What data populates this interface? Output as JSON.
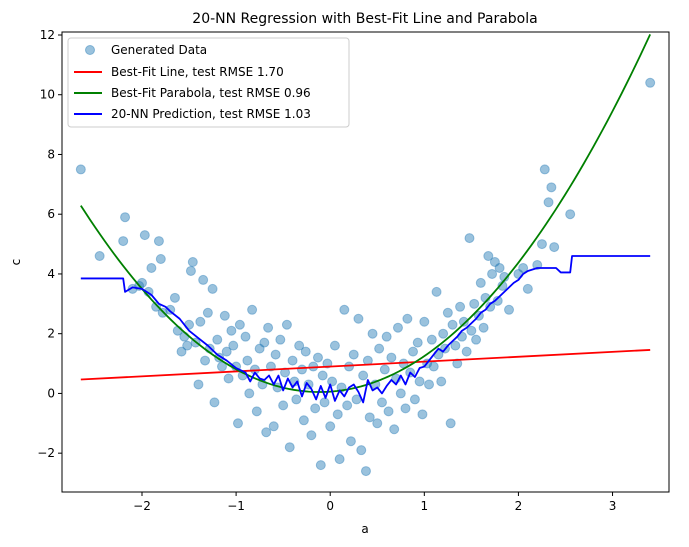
{
  "chart_data": {
    "type": "scatter",
    "title": "20-NN Regression with Best-Fit Line and Parabola",
    "xlabel": "a",
    "ylabel": "c",
    "xlim": [
      -2.85,
      3.6
    ],
    "ylim": [
      -3.3,
      12.1
    ],
    "x_ticks": [
      -2,
      -1,
      0,
      1,
      2,
      3
    ],
    "y_ticks": [
      -2,
      0,
      2,
      4,
      6,
      8,
      10,
      12
    ],
    "grid": false,
    "legend_position": "top-left",
    "series": [
      {
        "name": "Generated Data",
        "kind": "scatter",
        "color": "#1f77b4",
        "alpha": 0.45,
        "points": [
          [
            -2.65,
            7.5
          ],
          [
            -2.45,
            4.6
          ],
          [
            -2.2,
            5.1
          ],
          [
            -2.18,
            5.9
          ],
          [
            -2.1,
            3.5
          ],
          [
            -2.03,
            3.6
          ],
          [
            -2,
            3.7
          ],
          [
            -1.97,
            5.3
          ],
          [
            -1.93,
            3.4
          ],
          [
            -1.9,
            4.2
          ],
          [
            -1.85,
            2.9
          ],
          [
            -1.82,
            5.1
          ],
          [
            -1.8,
            4.5
          ],
          [
            -1.78,
            2.7
          ],
          [
            -1.7,
            2.8
          ],
          [
            -1.65,
            3.2
          ],
          [
            -1.62,
            2.1
          ],
          [
            -1.58,
            1.4
          ],
          [
            -1.55,
            1.9
          ],
          [
            -1.52,
            1.6
          ],
          [
            -1.5,
            2.3
          ],
          [
            -1.48,
            4.1
          ],
          [
            -1.46,
            4.4
          ],
          [
            -1.43,
            1.7
          ],
          [
            -1.4,
            0.3
          ],
          [
            -1.38,
            2.4
          ],
          [
            -1.35,
            3.8
          ],
          [
            -1.33,
            1.1
          ],
          [
            -1.3,
            2.7
          ],
          [
            -1.28,
            1.5
          ],
          [
            -1.25,
            3.5
          ],
          [
            -1.23,
            -0.3
          ],
          [
            -1.2,
            1.8
          ],
          [
            -1.18,
            1.2
          ],
          [
            -1.15,
            0.9
          ],
          [
            -1.12,
            2.6
          ],
          [
            -1.1,
            1.4
          ],
          [
            -1.08,
            0.5
          ],
          [
            -1.05,
            2.1
          ],
          [
            -1.03,
            1.6
          ],
          [
            -1.0,
            0.9
          ],
          [
            -0.98,
            -1.0
          ],
          [
            -0.96,
            2.3
          ],
          [
            -0.93,
            0.6
          ],
          [
            -0.9,
            1.9
          ],
          [
            -0.88,
            1.1
          ],
          [
            -0.86,
            0.0
          ],
          [
            -0.83,
            2.8
          ],
          [
            -0.8,
            0.8
          ],
          [
            -0.78,
            -0.6
          ],
          [
            -0.75,
            1.5
          ],
          [
            -0.72,
            0.3
          ],
          [
            -0.7,
            1.7
          ],
          [
            -0.68,
            -1.3
          ],
          [
            -0.66,
            2.2
          ],
          [
            -0.63,
            0.9
          ],
          [
            -0.6,
            -1.1
          ],
          [
            -0.58,
            1.3
          ],
          [
            -0.56,
            0.2
          ],
          [
            -0.53,
            1.8
          ],
          [
            -0.5,
            -0.4
          ],
          [
            -0.48,
            0.7
          ],
          [
            -0.46,
            2.3
          ],
          [
            -0.43,
            -1.8
          ],
          [
            -0.4,
            1.1
          ],
          [
            -0.38,
            0.4
          ],
          [
            -0.36,
            -0.2
          ],
          [
            -0.33,
            1.6
          ],
          [
            -0.3,
            0.8
          ],
          [
            -0.28,
            -0.9
          ],
          [
            -0.26,
            1.4
          ],
          [
            -0.23,
            0.3
          ],
          [
            -0.2,
            -1.4
          ],
          [
            -0.18,
            0.9
          ],
          [
            -0.16,
            -0.5
          ],
          [
            -0.13,
            1.2
          ],
          [
            -0.1,
            -2.4
          ],
          [
            -0.08,
            0.6
          ],
          [
            -0.06,
            -0.3
          ],
          [
            -0.03,
            1.0
          ],
          [
            0.0,
            -1.1
          ],
          [
            0.02,
            0.4
          ],
          [
            0.05,
            1.6
          ],
          [
            0.08,
            -0.7
          ],
          [
            0.1,
            -2.2
          ],
          [
            0.12,
            0.2
          ],
          [
            0.15,
            2.8
          ],
          [
            0.18,
            -0.4
          ],
          [
            0.2,
            0.9
          ],
          [
            0.22,
            -1.6
          ],
          [
            0.25,
            1.3
          ],
          [
            0.28,
            -0.2
          ],
          [
            0.3,
            2.5
          ],
          [
            0.33,
            -1.9
          ],
          [
            0.35,
            0.6
          ],
          [
            0.38,
            -2.6
          ],
          [
            0.4,
            1.1
          ],
          [
            0.42,
            -0.8
          ],
          [
            0.45,
            2.0
          ],
          [
            0.48,
            0.3
          ],
          [
            0.5,
            -1.0
          ],
          [
            0.52,
            1.5
          ],
          [
            0.55,
            -0.3
          ],
          [
            0.58,
            0.8
          ],
          [
            0.6,
            1.9
          ],
          [
            0.62,
            -0.6
          ],
          [
            0.65,
            1.2
          ],
          [
            0.68,
            -1.2
          ],
          [
            0.7,
            0.5
          ],
          [
            0.72,
            2.2
          ],
          [
            0.75,
            0.0
          ],
          [
            0.78,
            1.0
          ],
          [
            0.8,
            -0.5
          ],
          [
            0.82,
            2.5
          ],
          [
            0.85,
            0.7
          ],
          [
            0.88,
            1.4
          ],
          [
            0.9,
            -0.2
          ],
          [
            0.93,
            1.7
          ],
          [
            0.95,
            0.4
          ],
          [
            0.98,
            -0.7
          ],
          [
            1.0,
            2.4
          ],
          [
            1.03,
            1.0
          ],
          [
            1.05,
            0.3
          ],
          [
            1.08,
            1.8
          ],
          [
            1.1,
            0.9
          ],
          [
            1.13,
            3.4
          ],
          [
            1.15,
            1.3
          ],
          [
            1.18,
            0.4
          ],
          [
            1.2,
            2.0
          ],
          [
            1.22,
            1.5
          ],
          [
            1.25,
            2.7
          ],
          [
            1.28,
            -1.0
          ],
          [
            1.3,
            2.3
          ],
          [
            1.33,
            1.6
          ],
          [
            1.35,
            1.0
          ],
          [
            1.38,
            2.9
          ],
          [
            1.4,
            1.9
          ],
          [
            1.42,
            2.4
          ],
          [
            1.45,
            1.4
          ],
          [
            1.48,
            5.2
          ],
          [
            1.5,
            2.1
          ],
          [
            1.53,
            3.0
          ],
          [
            1.55,
            1.8
          ],
          [
            1.58,
            2.6
          ],
          [
            1.6,
            3.7
          ],
          [
            1.63,
            2.2
          ],
          [
            1.65,
            3.2
          ],
          [
            1.68,
            4.6
          ],
          [
            1.7,
            2.9
          ],
          [
            1.72,
            4.0
          ],
          [
            1.75,
            4.4
          ],
          [
            1.78,
            3.1
          ],
          [
            1.8,
            4.2
          ],
          [
            1.83,
            3.6
          ],
          [
            1.85,
            3.9
          ],
          [
            1.9,
            2.8
          ],
          [
            2.0,
            4.0
          ],
          [
            2.05,
            4.2
          ],
          [
            2.1,
            3.5
          ],
          [
            2.2,
            4.3
          ],
          [
            2.25,
            5.0
          ],
          [
            2.28,
            7.5
          ],
          [
            2.32,
            6.4
          ],
          [
            2.35,
            6.9
          ],
          [
            2.38,
            4.9
          ],
          [
            2.55,
            6.0
          ],
          [
            3.4,
            10.4
          ]
        ]
      },
      {
        "name": "Best-Fit Line, test RMSE 1.70",
        "kind": "line",
        "color": "#ff0000",
        "x_range": [
          -2.65,
          3.4
        ],
        "slope": 0.1637,
        "intercept": 0.9
      },
      {
        "name": "Best-Fit Parabola, test RMSE 0.96",
        "kind": "line",
        "color": "#008000",
        "x_range": [
          -2.65,
          3.4
        ],
        "a": 0.97,
        "b": 0.22,
        "c": 0.06
      },
      {
        "name": "20-NN Prediction, test RMSE 1.03",
        "kind": "line",
        "color": "#0000ff",
        "points": [
          [
            -2.65,
            3.85
          ],
          [
            -2.2,
            3.85
          ],
          [
            -2.18,
            3.4
          ],
          [
            -2.1,
            3.55
          ],
          [
            -2.0,
            3.5
          ],
          [
            -1.9,
            3.3
          ],
          [
            -1.82,
            3.0
          ],
          [
            -1.75,
            2.9
          ],
          [
            -1.7,
            2.75
          ],
          [
            -1.6,
            2.5
          ],
          [
            -1.5,
            2.1
          ],
          [
            -1.4,
            1.85
          ],
          [
            -1.3,
            1.6
          ],
          [
            -1.2,
            1.3
          ],
          [
            -1.1,
            1.1
          ],
          [
            -1.0,
            0.85
          ],
          [
            -0.9,
            0.7
          ],
          [
            -0.85,
            0.4
          ],
          [
            -0.8,
            0.7
          ],
          [
            -0.75,
            0.5
          ],
          [
            -0.7,
            0.45
          ],
          [
            -0.65,
            0.6
          ],
          [
            -0.6,
            0.3
          ],
          [
            -0.55,
            0.6
          ],
          [
            -0.5,
            0.1
          ],
          [
            -0.45,
            0.5
          ],
          [
            -0.4,
            0.2
          ],
          [
            -0.35,
            0.4
          ],
          [
            -0.3,
            -0.1
          ],
          [
            -0.25,
            0.35
          ],
          [
            -0.2,
            0.15
          ],
          [
            -0.15,
            -0.2
          ],
          [
            -0.1,
            0.25
          ],
          [
            -0.05,
            -0.15
          ],
          [
            0.0,
            0.3
          ],
          [
            0.05,
            -0.25
          ],
          [
            0.1,
            0.1
          ],
          [
            0.15,
            -0.1
          ],
          [
            0.2,
            0.2
          ],
          [
            0.25,
            0.3
          ],
          [
            0.3,
            0.05
          ],
          [
            0.35,
            -0.3
          ],
          [
            0.4,
            0.45
          ],
          [
            0.45,
            0.1
          ],
          [
            0.5,
            0.2
          ],
          [
            0.55,
            0.0
          ],
          [
            0.6,
            0.25
          ],
          [
            0.65,
            0.45
          ],
          [
            0.7,
            0.3
          ],
          [
            0.75,
            0.6
          ],
          [
            0.8,
            0.3
          ],
          [
            0.85,
            0.7
          ],
          [
            0.9,
            0.55
          ],
          [
            0.95,
            0.85
          ],
          [
            1.0,
            0.9
          ],
          [
            1.05,
            1.1
          ],
          [
            1.1,
            1.3
          ],
          [
            1.15,
            1.5
          ],
          [
            1.2,
            1.4
          ],
          [
            1.25,
            1.6
          ],
          [
            1.3,
            1.75
          ],
          [
            1.35,
            1.9
          ],
          [
            1.4,
            2.1
          ],
          [
            1.45,
            2.2
          ],
          [
            1.5,
            2.35
          ],
          [
            1.55,
            2.5
          ],
          [
            1.6,
            2.7
          ],
          [
            1.65,
            2.8
          ],
          [
            1.7,
            3.0
          ],
          [
            1.75,
            3.1
          ],
          [
            1.8,
            3.25
          ],
          [
            1.85,
            3.4
          ],
          [
            1.9,
            3.55
          ],
          [
            1.95,
            3.7
          ],
          [
            2.0,
            3.8
          ],
          [
            2.05,
            4.0
          ],
          [
            2.1,
            4.1
          ],
          [
            2.2,
            4.2
          ],
          [
            2.4,
            4.2
          ],
          [
            2.45,
            4.05
          ],
          [
            2.55,
            4.05
          ],
          [
            2.57,
            4.6
          ],
          [
            3.4,
            4.6
          ]
        ]
      }
    ]
  }
}
